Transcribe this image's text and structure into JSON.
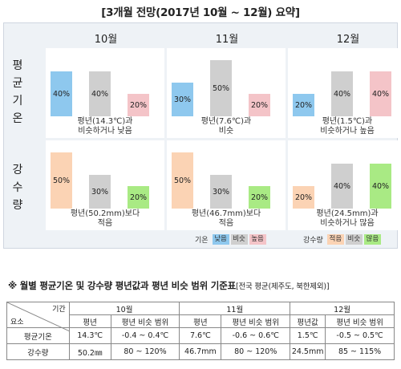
{
  "title": "[3개월 전망(2017년 10월 ~ 12월) 요약]",
  "months": [
    "10월",
    "11월",
    "12월"
  ],
  "rows": [
    {
      "label_chars": [
        "평",
        "균",
        "기",
        "온"
      ],
      "cells": [
        {
          "bars": [
            {
              "value": 40,
              "label": "40%",
              "color": "#8ec8ee"
            },
            {
              "value": 40,
              "label": "40%",
              "color": "#cfcfcf"
            },
            {
              "value": 20,
              "label": "20%",
              "color": "#f4c4c8"
            }
          ],
          "text": [
            "평년(14.3℃)과",
            "비슷하거나 낮음"
          ]
        },
        {
          "bars": [
            {
              "value": 30,
              "label": "30%",
              "color": "#8ec8ee"
            },
            {
              "value": 50,
              "label": "50%",
              "color": "#cfcfcf"
            },
            {
              "value": 20,
              "label": "20%",
              "color": "#f4c4c8"
            }
          ],
          "text": [
            "평년(7.6℃)과",
            "비슷"
          ]
        },
        {
          "bars": [
            {
              "value": 20,
              "label": "20%",
              "color": "#8ec8ee"
            },
            {
              "value": 40,
              "label": "40%",
              "color": "#cfcfcf"
            },
            {
              "value": 40,
              "label": "40%",
              "color": "#f4c4c8"
            }
          ],
          "text": [
            "평년(1.5℃)과",
            "비슷하거나 높음"
          ]
        }
      ]
    },
    {
      "label_chars": [
        "강",
        "수",
        "량"
      ],
      "cells": [
        {
          "bars": [
            {
              "value": 50,
              "label": "50%",
              "color": "#fbd3b4"
            },
            {
              "value": 30,
              "label": "30%",
              "color": "#cfcfcf"
            },
            {
              "value": 20,
              "label": "20%",
              "color": "#a9ea84"
            }
          ],
          "text": [
            "평년(50.2mm)보다",
            "적음"
          ]
        },
        {
          "bars": [
            {
              "value": 50,
              "label": "50%",
              "color": "#fbd3b4"
            },
            {
              "value": 30,
              "label": "30%",
              "color": "#cfcfcf"
            },
            {
              "value": 20,
              "label": "20%",
              "color": "#a9ea84"
            }
          ],
          "text": [
            "평년(46.7mm)보다",
            "적음"
          ]
        },
        {
          "bars": [
            {
              "value": 20,
              "label": "20%",
              "color": "#fbd3b4"
            },
            {
              "value": 40,
              "label": "40%",
              "color": "#cfcfcf"
            },
            {
              "value": 40,
              "label": "40%",
              "color": "#a9ea84"
            }
          ],
          "text": [
            "평년(24.5mm)과",
            "비슷하거나 많음"
          ]
        }
      ]
    }
  ],
  "legend": {
    "temp": {
      "label": "기온",
      "items": [
        {
          "text": "낮음",
          "color": "#8ec8ee"
        },
        {
          "text": "비슷",
          "color": "#cfcfcf"
        },
        {
          "text": "높음",
          "color": "#f4c4c8"
        }
      ]
    },
    "precip": {
      "label": "강수량",
      "items": [
        {
          "text": "적음",
          "color": "#fbd3b4"
        },
        {
          "text": "비슷",
          "color": "#cfcfcf"
        },
        {
          "text": "많음",
          "color": "#a9ea84"
        }
      ]
    }
  },
  "subtitle": {
    "main": "※ 월별 평균기온 및 강수량 평년값과 평년 비슷 범위 기준표",
    "note": "[전국 평균(제주도, 북한제외)]"
  },
  "table": {
    "corner_top": "기간",
    "corner_bottom": "요소",
    "months": [
      "10월",
      "11월",
      "12월"
    ],
    "sub_headers": [
      "평년",
      "평년 비슷 범위"
    ],
    "sub_headers_12": [
      "평년값",
      "평년 비슷 범위"
    ],
    "rows": [
      {
        "label": "평균기온",
        "values": [
          "14.3℃",
          "-0.4 ~ 0.4℃",
          "7.6℃",
          "-0.6 ~ 0.6℃",
          "1.5℃",
          "-0.5 ~ 0.5℃"
        ]
      },
      {
        "label": "강수량",
        "values": [
          "50.2㎜",
          "80 ~ 120%",
          "46.7mm",
          "80 ~ 120%",
          "24.5mm",
          "85 ~ 115%"
        ]
      }
    ]
  },
  "chart_data": {
    "type": "bar",
    "categories": [
      "10월",
      "11월",
      "12월"
    ],
    "series": [
      {
        "name": "평균기온",
        "categories": [
          "낮음",
          "비슷",
          "높음"
        ],
        "values": [
          [
            40,
            40,
            20
          ],
          [
            30,
            50,
            20
          ],
          [
            20,
            40,
            40
          ]
        ]
      },
      {
        "name": "강수량",
        "categories": [
          "적음",
          "비슷",
          "많음"
        ],
        "values": [
          [
            50,
            30,
            20
          ],
          [
            50,
            30,
            20
          ],
          [
            20,
            40,
            40
          ]
        ]
      }
    ],
    "ylim": [
      0,
      60
    ]
  }
}
